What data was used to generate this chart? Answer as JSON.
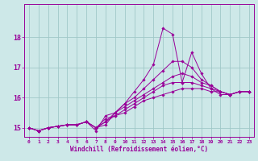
{
  "xlabel": "Windchill (Refroidissement éolien,°C)",
  "background_color": "#cde8e8",
  "line_color": "#990099",
  "grid_color": "#a0c8c8",
  "xlim": [
    -0.5,
    23.5
  ],
  "ylim": [
    14.7,
    19.1
  ],
  "yticks": [
    15,
    16,
    17,
    18
  ],
  "xticks": [
    0,
    1,
    2,
    3,
    4,
    5,
    6,
    7,
    8,
    9,
    10,
    11,
    12,
    13,
    14,
    15,
    16,
    17,
    18,
    19,
    20,
    21,
    22,
    23
  ],
  "series": [
    [
      15.0,
      14.9,
      15.0,
      15.05,
      15.1,
      15.1,
      15.2,
      14.9,
      15.4,
      15.5,
      15.8,
      16.2,
      16.6,
      17.1,
      18.3,
      18.1,
      16.5,
      17.5,
      16.8,
      16.3,
      16.1,
      16.1,
      16.2,
      16.2
    ],
    [
      15.0,
      14.9,
      15.0,
      15.05,
      15.1,
      15.1,
      15.2,
      15.0,
      15.1,
      15.5,
      15.8,
      16.0,
      16.3,
      16.6,
      16.9,
      17.2,
      17.2,
      17.0,
      16.6,
      16.4,
      16.2,
      16.1,
      16.2,
      16.2
    ],
    [
      15.0,
      14.9,
      15.0,
      15.05,
      15.1,
      15.1,
      15.2,
      15.0,
      15.2,
      15.5,
      15.7,
      15.9,
      16.1,
      16.3,
      16.5,
      16.7,
      16.8,
      16.7,
      16.5,
      16.4,
      16.2,
      16.1,
      16.2,
      16.2
    ],
    [
      15.0,
      14.9,
      15.0,
      15.05,
      15.1,
      15.1,
      15.2,
      15.0,
      15.2,
      15.4,
      15.6,
      15.8,
      16.0,
      16.2,
      16.4,
      16.5,
      16.5,
      16.5,
      16.4,
      16.3,
      16.2,
      16.1,
      16.2,
      16.2
    ],
    [
      15.0,
      14.9,
      15.0,
      15.05,
      15.1,
      15.1,
      15.2,
      15.0,
      15.3,
      15.4,
      15.5,
      15.7,
      15.9,
      16.0,
      16.1,
      16.2,
      16.3,
      16.3,
      16.3,
      16.2,
      16.2,
      16.1,
      16.2,
      16.2
    ]
  ]
}
